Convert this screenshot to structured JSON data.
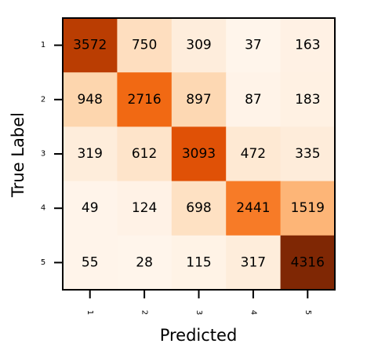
{
  "chart_data": {
    "type": "heatmap",
    "xlabel": "Predicted",
    "ylabel": "True Label",
    "x_categories": [
      "1",
      "2",
      "3",
      "4",
      "5"
    ],
    "y_categories": [
      "1",
      "2",
      "3",
      "4",
      "5"
    ],
    "values": [
      [
        3572,
        750,
        309,
        37,
        163
      ],
      [
        948,
        2716,
        897,
        87,
        183
      ],
      [
        319,
        612,
        3093,
        472,
        335
      ],
      [
        49,
        124,
        698,
        2441,
        1519
      ],
      [
        55,
        28,
        115,
        317,
        4316
      ]
    ],
    "colormap": "Oranges",
    "vmin": 28,
    "vmax": 4316,
    "legend": "none",
    "grid": false,
    "x_tick_rotation_deg": 90,
    "colors": {
      "low": "#fff5eb",
      "high": "#7f2704"
    }
  }
}
